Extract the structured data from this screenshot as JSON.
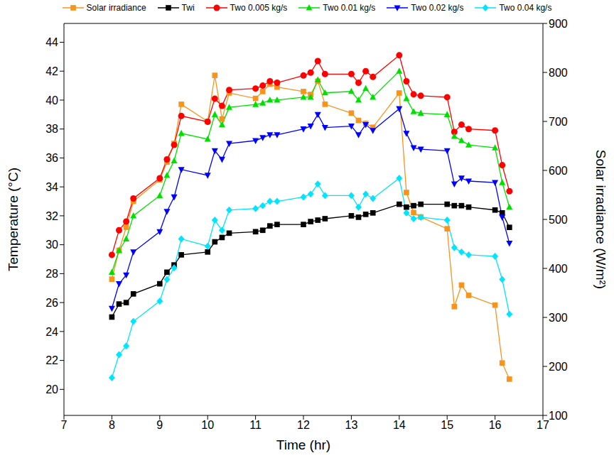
{
  "chart_data": {
    "type": "line",
    "x_label": "Time (hr)",
    "y_label": "Temperature (°C)",
    "y2_label": "Solar irradiance (W/m²)",
    "xlim": [
      7,
      17
    ],
    "xticks": [
      7,
      8,
      9,
      10,
      11,
      12,
      13,
      14,
      15,
      16,
      17
    ],
    "ylim": [
      18.2,
      45.3
    ],
    "yticks": [
      20,
      22,
      24,
      26,
      28,
      30,
      32,
      34,
      36,
      38,
      40,
      42,
      44
    ],
    "y2lim": [
      100,
      900
    ],
    "y2ticks": [
      100,
      200,
      300,
      400,
      500,
      600,
      700,
      800,
      900
    ],
    "grid": false,
    "legend": "top",
    "x": [
      8,
      8.15,
      8.3,
      8.45,
      9,
      9.15,
      9.3,
      9.45,
      10,
      10.15,
      10.3,
      10.45,
      11,
      11.15,
      11.3,
      11.45,
      12,
      12.15,
      12.3,
      12.45,
      13,
      13.15,
      13.3,
      13.45,
      14,
      14.15,
      14.3,
      14.45,
      15,
      15.15,
      15.3,
      15.45,
      16,
      16.15,
      16.3
    ],
    "series": [
      {
        "name": "Solar irradiance",
        "color": "#f7941d",
        "marker": "square",
        "axis": "y2",
        "values": [
          378,
          437,
          484,
          537,
          581,
          617,
          655,
          735,
          700,
          794,
          705,
          758,
          747,
          761,
          776,
          770,
          761,
          755,
          782,
          735,
          717,
          702,
          696,
          688,
          758,
          555,
          514,
          505,
          481,
          322,
          366,
          345,
          325,
          207,
          174
        ]
      },
      {
        "name": "Twi",
        "color": "#000000",
        "marker": "square",
        "values": [
          25.0,
          25.9,
          26.0,
          26.6,
          27.3,
          28.1,
          28.6,
          29.3,
          29.5,
          30.2,
          30.5,
          30.8,
          30.9,
          31.0,
          31.3,
          31.4,
          31.4,
          31.6,
          31.7,
          31.8,
          32.0,
          31.9,
          32.1,
          32.2,
          32.8,
          32.6,
          32.7,
          32.8,
          32.8,
          32.7,
          32.7,
          32.6,
          32.4,
          32.2,
          31.2
        ]
      },
      {
        "name": "Two 0.005 kg/s",
        "color": "#ff0000",
        "marker": "circle",
        "values": [
          29.3,
          31.0,
          31.6,
          33.2,
          34.6,
          35.9,
          36.9,
          38.9,
          38.5,
          40.1,
          39.6,
          40.7,
          40.8,
          41.0,
          41.3,
          41.2,
          41.7,
          41.9,
          42.7,
          41.8,
          41.8,
          41.2,
          42.0,
          41.6,
          43.1,
          41.3,
          40.4,
          40.3,
          40.2,
          37.8,
          38.3,
          38.0,
          37.9,
          35.5,
          33.7
        ]
      },
      {
        "name": "Two 0.01 kg/s",
        "color": "#00e000",
        "marker": "triangle-up",
        "values": [
          28.1,
          29.6,
          30.4,
          32.0,
          33.4,
          34.8,
          35.8,
          37.7,
          37.3,
          39.0,
          38.3,
          39.5,
          39.7,
          39.8,
          40.0,
          40.0,
          40.2,
          40.2,
          41.4,
          40.5,
          40.6,
          40.0,
          40.8,
          40.2,
          42.0,
          40.1,
          39.2,
          39.1,
          39.0,
          37.5,
          37.2,
          36.9,
          36.7,
          34.3,
          32.6
        ]
      },
      {
        "name": "Two 0.02 kg/s",
        "color": "#0000ff",
        "marker": "triangle-down",
        "values": [
          25.6,
          27.3,
          27.9,
          29.5,
          30.9,
          32.3,
          33.3,
          35.2,
          34.8,
          36.5,
          35.9,
          37.0,
          37.2,
          37.4,
          37.6,
          37.6,
          38.0,
          38.2,
          39.0,
          38.1,
          38.2,
          37.6,
          38.3,
          37.9,
          39.4,
          37.7,
          36.7,
          36.6,
          36.5,
          34.2,
          34.6,
          34.4,
          34.3,
          31.9,
          30.1
        ]
      },
      {
        "name": "Two 0.04 kg/s",
        "color": "#00e5ff",
        "marker": "diamond",
        "values": [
          20.8,
          22.4,
          23.0,
          24.7,
          26.1,
          27.6,
          28.4,
          30.4,
          29.9,
          31.7,
          31.0,
          32.4,
          32.5,
          32.7,
          33.0,
          33.0,
          33.3,
          33.5,
          34.2,
          33.4,
          33.4,
          32.6,
          33.5,
          33.2,
          34.6,
          32.2,
          31.8,
          31.9,
          31.7,
          29.8,
          29.5,
          29.3,
          29.2,
          27.6,
          25.2
        ]
      }
    ]
  }
}
